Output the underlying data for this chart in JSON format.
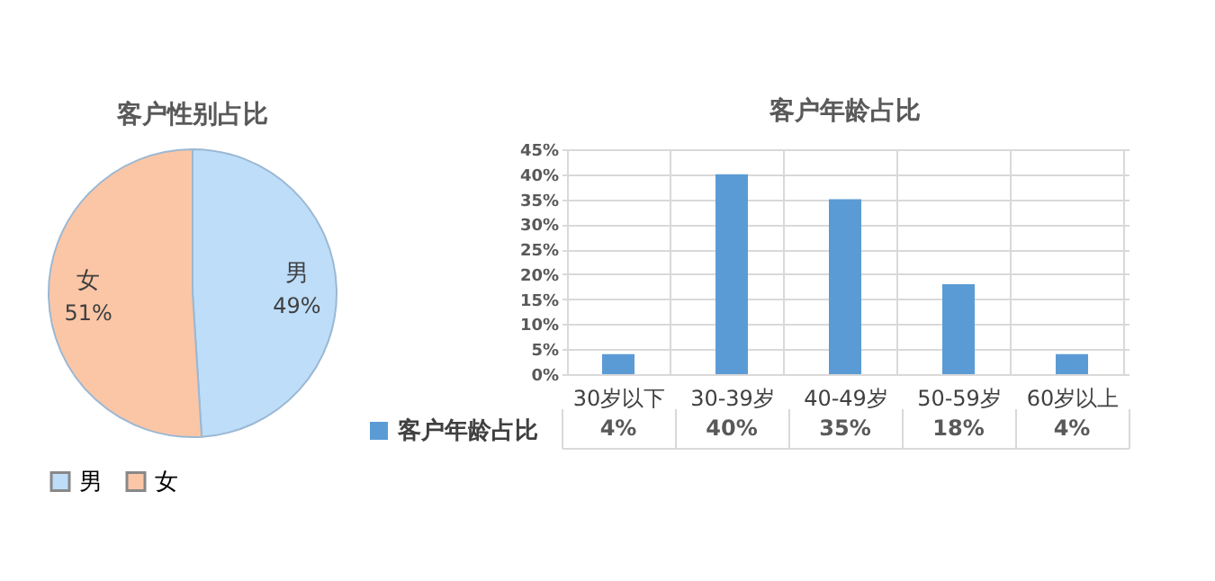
{
  "chart_data": [
    {
      "type": "pie",
      "title": "客户性别占比",
      "categories": [
        "男",
        "女"
      ],
      "values": [
        49,
        51
      ],
      "colors": [
        "#bdddf9",
        "#fbc6a6"
      ],
      "value_labels": [
        "49%",
        "51%"
      ],
      "legend": "bottom"
    },
    {
      "type": "bar",
      "title": "客户年龄占比",
      "categories": [
        "30岁以下",
        "30-39岁",
        "40-49岁",
        "50-59岁",
        "60岁以上"
      ],
      "series": [
        {
          "name": "客户年龄占比",
          "color": "#5b9bd5",
          "values": [
            4,
            40,
            35,
            18,
            4
          ],
          "value_labels": [
            "4%",
            "40%",
            "35%",
            "18%",
            "4%"
          ]
        }
      ],
      "ylim": [
        0,
        45
      ],
      "yticks": [
        {
          "value": 0,
          "label": "0%"
        },
        {
          "value": 5,
          "label": "5%"
        },
        {
          "value": 10,
          "label": "10%"
        },
        {
          "value": 15,
          "label": "15%"
        },
        {
          "value": 20,
          "label": "20%"
        },
        {
          "value": 25,
          "label": "25%"
        },
        {
          "value": 30,
          "label": "30%"
        },
        {
          "value": 35,
          "label": "35%"
        },
        {
          "value": 40,
          "label": "40%"
        },
        {
          "value": 45,
          "label": "45%"
        }
      ],
      "grid": "y",
      "legend": "bottom left"
    }
  ]
}
